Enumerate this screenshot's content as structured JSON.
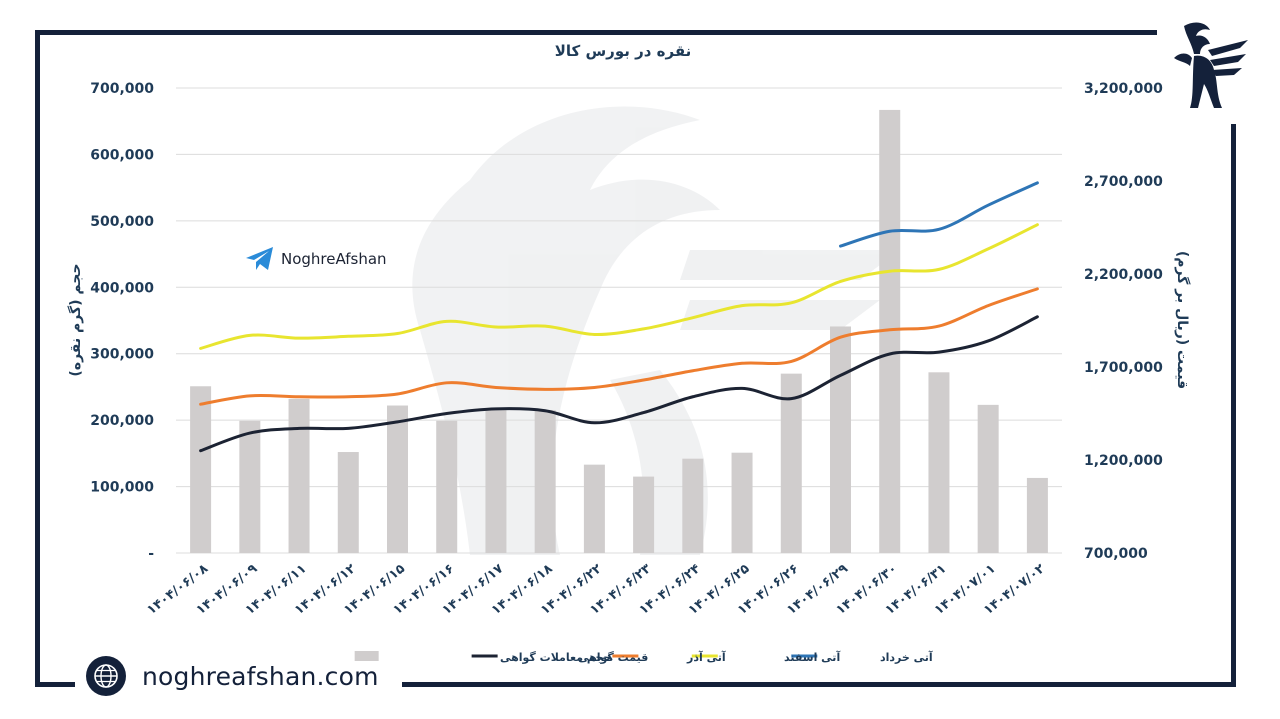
{
  "brand": {
    "telegram_name": "NoghreAfshan",
    "website": "noghreafshan.com",
    "logo_icon": "ibex-winged-logo",
    "telegram_icon": "telegram-icon",
    "globe_icon": "globe-icon",
    "frame_color": "#14213a"
  },
  "chart_data": {
    "type": "bar+line",
    "title": "نقره در بورس کالا",
    "y_left_label": "حجم (گرم نقره)",
    "y_right_label": "قیمت (ریال بر گرم)",
    "y_left_range": [
      0,
      700000
    ],
    "y_right_range": [
      700000,
      3200000
    ],
    "y_left_ticks": [
      "-",
      "100,000",
      "200,000",
      "300,000",
      "400,000",
      "500,000",
      "600,000",
      "700,000"
    ],
    "y_right_ticks": [
      "700,000",
      "1,200,000",
      "1,700,000",
      "2,200,000",
      "2,700,000",
      "3,200,000"
    ],
    "grid": true,
    "legend_position": "bottom",
    "categories": [
      "۱۴۰۴/۰۶/۰۸",
      "۱۴۰۴/۰۶/۰۹",
      "۱۴۰۴/۰۶/۱۱",
      "۱۴۰۴/۰۶/۱۲",
      "۱۴۰۴/۰۶/۱۵",
      "۱۴۰۴/۰۶/۱۶",
      "۱۴۰۴/۰۶/۱۷",
      "۱۴۰۴/۰۶/۱۸",
      "۱۴۰۴/۰۶/۲۲",
      "۱۴۰۴/۰۶/۲۳",
      "۱۴۰۴/۰۶/۲۴",
      "۱۴۰۴/۰۶/۲۵",
      "۱۴۰۴/۰۶/۲۶",
      "۱۴۰۴/۰۶/۲۹",
      "۱۴۰۴/۰۶/۳۰",
      "۱۴۰۴/۰۶/۳۱",
      "۱۴۰۴/۰۷/۰۱",
      "۱۴۰۴/۰۷/۰۲"
    ],
    "bars": {
      "name": "حجم معاملات گواهی",
      "color": "#d0cdcd",
      "axis": "left",
      "values": [
        251000,
        199000,
        232000,
        152000,
        222000,
        199000,
        215000,
        215000,
        133000,
        115000,
        142000,
        151000,
        270000,
        341000,
        667000,
        272000,
        223000,
        113000
      ]
    },
    "series": [
      {
        "name": "قیمت گواهی",
        "color": "#1c2333",
        "axis": "right",
        "values": [
          1250000,
          1345000,
          1370000,
          1370000,
          1405000,
          1450000,
          1475000,
          1465000,
          1400000,
          1455000,
          1540000,
          1585000,
          1530000,
          1655000,
          1770000,
          1780000,
          1840000,
          1970000
        ]
      },
      {
        "name": "آتی آذر",
        "color": "#ee7d2e",
        "axis": "right",
        "values": [
          1500000,
          1545000,
          1540000,
          1540000,
          1555000,
          1615000,
          1590000,
          1580000,
          1590000,
          1630000,
          1680000,
          1720000,
          1730000,
          1860000,
          1900000,
          1920000,
          2030000,
          2120000
        ]
      },
      {
        "name": "آتی اسفند",
        "color": "#e8e52f",
        "axis": "right",
        "values": [
          1800000,
          1870000,
          1855000,
          1865000,
          1880000,
          1945000,
          1915000,
          1920000,
          1875000,
          1905000,
          1965000,
          2030000,
          2045000,
          2160000,
          2215000,
          2225000,
          2335000,
          2465000
        ]
      },
      {
        "name": "آتی خرداد",
        "color": "#2e75b6",
        "axis": "right",
        "values": [
          null,
          null,
          null,
          null,
          null,
          null,
          null,
          null,
          null,
          null,
          null,
          null,
          null,
          2350000,
          2430000,
          2440000,
          2570000,
          2690000
        ]
      }
    ]
  }
}
